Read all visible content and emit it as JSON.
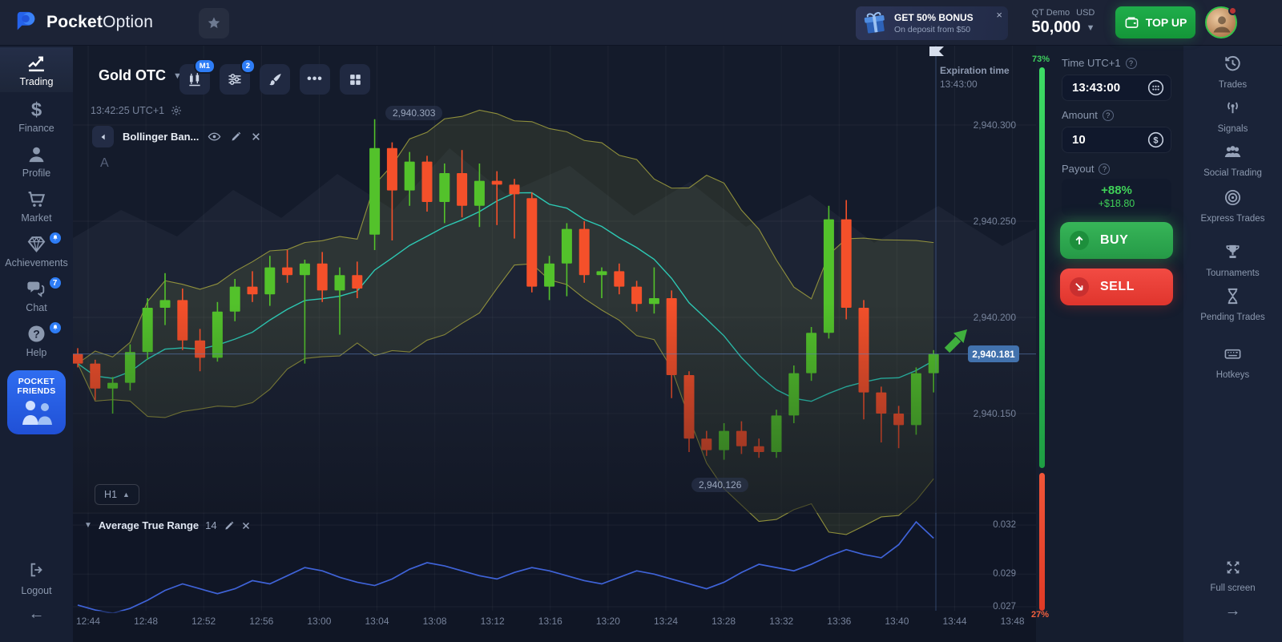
{
  "topbar": {
    "brand_bold": "Pocket",
    "brand_light": "Option",
    "bonus": {
      "title": "GET 50% BONUS",
      "subtitle": "On deposit from $50",
      "close": "×"
    },
    "account": {
      "type": "QT Demo",
      "currency": "USD",
      "balance": "50,000"
    },
    "topup_label": "TOP UP"
  },
  "sidebar_left": {
    "items": [
      {
        "label": "Trading",
        "icon": "chart-line",
        "active": true,
        "badge": null
      },
      {
        "label": "Finance",
        "icon": "dollar",
        "active": false,
        "badge": null
      },
      {
        "label": "Profile",
        "icon": "person",
        "active": false,
        "badge": null
      },
      {
        "label": "Market",
        "icon": "cart",
        "active": false,
        "badge": null
      },
      {
        "label": "Achievements",
        "icon": "gem",
        "active": false,
        "badge": "bell"
      },
      {
        "label": "Chat",
        "icon": "chat",
        "active": false,
        "badge": "7"
      },
      {
        "label": "Help",
        "icon": "help",
        "active": false,
        "badge": "bell"
      }
    ],
    "promo": {
      "line1": "POCKET",
      "line2": "FRIENDS"
    },
    "logout_label": "Logout",
    "back_arrow": "←"
  },
  "sidebar_right": {
    "items": [
      {
        "label": "Trades",
        "icon": "history"
      },
      {
        "label": "Signals",
        "icon": "signal"
      },
      {
        "label": "Social Trading",
        "icon": "people"
      },
      {
        "label": "Express Trades",
        "icon": "bullseye"
      },
      {
        "label": "Tournaments",
        "icon": "trophy"
      },
      {
        "label": "Pending Trades",
        "icon": "hourglass"
      },
      {
        "label": "Hotkeys",
        "icon": "keyboard"
      }
    ],
    "fullscreen_label": "Full screen",
    "forward_arrow": "→"
  },
  "toolbar": {
    "asset": "Gold OTC",
    "chart_type_badge": "M1",
    "indicators_badge": "2",
    "more_dots": "•••",
    "clock": "13:42:25 UTC+1",
    "indicator_chip": "Bollinger Ban...",
    "annotation_label": "A",
    "timeframe": "H1"
  },
  "chart": {
    "current_price": "2,940.181",
    "high_marker": "2,940.303",
    "low_marker": "2,940.126",
    "expiration_label": "Expiration time",
    "expiration_time": "13:43:00",
    "sentiment_up": "73%",
    "sentiment_down": "27%",
    "price_ticks": [
      "2,940.300",
      "2,940.250",
      "2,940.200",
      "2,940.150"
    ],
    "price_tick_values": [
      2940.3,
      2940.25,
      2940.2,
      2940.15
    ],
    "time_ticks": [
      "12:44",
      "12:48",
      "12:52",
      "12:56",
      "13:00",
      "13:04",
      "13:08",
      "13:12",
      "13:16",
      "13:20",
      "13:24",
      "13:28",
      "13:32",
      "13:36",
      "13:40",
      "13:44",
      "13:48"
    ]
  },
  "indicator_panel": {
    "title": "Average True Range",
    "param": "14",
    "ticks": [
      "0.032",
      "0.029",
      "0.027"
    ],
    "tick_values": [
      0.032,
      0.029,
      0.027
    ]
  },
  "trade_panel": {
    "time_label": "Time UTC+1",
    "time_value": "13:43:00",
    "amount_label": "Amount",
    "amount_value": "10",
    "payout_label": "Payout",
    "payout_percent": "+88%",
    "payout_amount": "+$18.80",
    "buy_label": "BUY",
    "sell_label": "SELL"
  },
  "colors": {
    "candle_up": "#53c22b",
    "candle_down": "#f4502a",
    "bollinger_band": "#a3a23e",
    "bollinger_mid": "#2ed9c2",
    "atr_line": "#3f63d8",
    "buy_green": "#2fa84d",
    "sell_red": "#f23c3c",
    "accent_blue": "#2e7df6",
    "price_badge": "#4272ad"
  },
  "chart_data": {
    "type": "candlestick",
    "symbol": "Gold OTC",
    "price_base": 2940,
    "unit": 0.001,
    "note": "candles are [open,high,low,close] in units of 0.001 above price_base",
    "candles_ohlc": [
      [
        181,
        184,
        174,
        176
      ],
      [
        176,
        178,
        157,
        163
      ],
      [
        163,
        169,
        150,
        166
      ],
      [
        166,
        186,
        162,
        182
      ],
      [
        182,
        210,
        178,
        205
      ],
      [
        205,
        223,
        196,
        209
      ],
      [
        209,
        215,
        183,
        188
      ],
      [
        188,
        194,
        172,
        179
      ],
      [
        179,
        208,
        177,
        203
      ],
      [
        203,
        220,
        198,
        216
      ],
      [
        216,
        224,
        208,
        212
      ],
      [
        212,
        232,
        206,
        226
      ],
      [
        226,
        235,
        218,
        222
      ],
      [
        222,
        230,
        176,
        228
      ],
      [
        228,
        234,
        208,
        214
      ],
      [
        214,
        226,
        191,
        222
      ],
      [
        222,
        229,
        210,
        215
      ],
      [
        243,
        303,
        235,
        288
      ],
      [
        288,
        291,
        240,
        266
      ],
      [
        266,
        286,
        258,
        281
      ],
      [
        281,
        284,
        255,
        260
      ],
      [
        260,
        280,
        249,
        275
      ],
      [
        275,
        287,
        252,
        258
      ],
      [
        258,
        280,
        247,
        271
      ],
      [
        271,
        276,
        248,
        269
      ],
      [
        269,
        272,
        241,
        264
      ],
      [
        262,
        265,
        213,
        216
      ],
      [
        216,
        232,
        209,
        228
      ],
      [
        228,
        249,
        211,
        246
      ],
      [
        246,
        250,
        218,
        222
      ],
      [
        222,
        226,
        210,
        224
      ],
      [
        224,
        228,
        212,
        216
      ],
      [
        216,
        219,
        203,
        207
      ],
      [
        207,
        226,
        202,
        210
      ],
      [
        210,
        214,
        158,
        170
      ],
      [
        170,
        172,
        130,
        137
      ],
      [
        137,
        141,
        128,
        131
      ],
      [
        131,
        145,
        126,
        141
      ],
      [
        141,
        146,
        129,
        133
      ],
      [
        133,
        137,
        127,
        130
      ],
      [
        130,
        152,
        127,
        149
      ],
      [
        149,
        175,
        145,
        171
      ],
      [
        171,
        195,
        167,
        192
      ],
      [
        192,
        258,
        189,
        251
      ],
      [
        251,
        261,
        199,
        205
      ],
      [
        205,
        209,
        147,
        161
      ],
      [
        161,
        164,
        135,
        150
      ],
      [
        150,
        154,
        132,
        144
      ],
      [
        144,
        174,
        139,
        171
      ],
      [
        171,
        183,
        161,
        181
      ]
    ],
    "overlay": {
      "name": "Bollinger Bands",
      "period": 10,
      "stddev": 2
    },
    "indicator": {
      "name": "Average True Range",
      "period": 14,
      "values": [
        0.0271,
        0.0268,
        0.0266,
        0.0269,
        0.0274,
        0.028,
        0.0284,
        0.0281,
        0.0278,
        0.0281,
        0.0286,
        0.0284,
        0.0289,
        0.0294,
        0.0292,
        0.0288,
        0.0285,
        0.0283,
        0.0287,
        0.0293,
        0.0297,
        0.0295,
        0.0292,
        0.0289,
        0.0287,
        0.0291,
        0.0294,
        0.0292,
        0.0289,
        0.0286,
        0.0284,
        0.0288,
        0.0292,
        0.029,
        0.0287,
        0.0284,
        0.0281,
        0.0285,
        0.0291,
        0.0296,
        0.0294,
        0.0292,
        0.0296,
        0.0301,
        0.0305,
        0.0302,
        0.03,
        0.0308,
        0.0322,
        0.0312
      ]
    }
  }
}
